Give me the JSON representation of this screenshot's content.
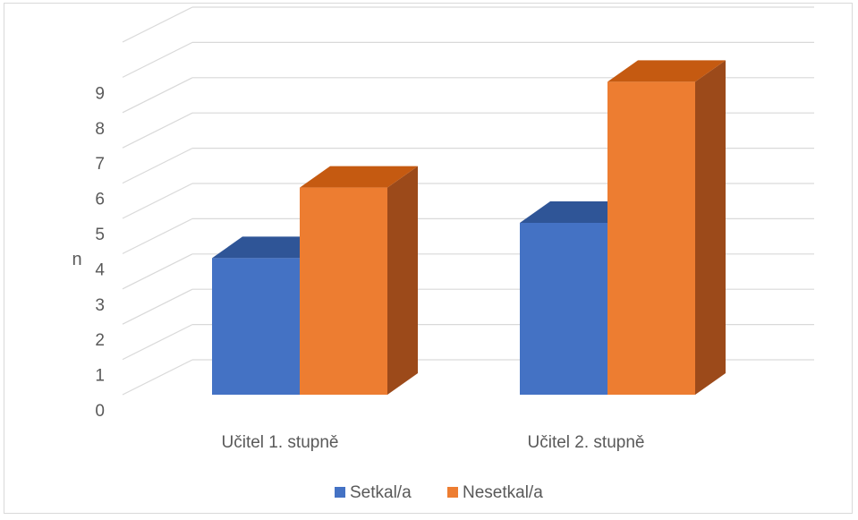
{
  "chart_data": {
    "type": "bar",
    "title": "",
    "xlabel": "",
    "ylabel": "n",
    "ylim": [
      0,
      10
    ],
    "yticks": [
      0,
      1,
      2,
      3,
      4,
      5,
      6,
      7,
      8,
      9
    ],
    "grid": true,
    "legend_position": "bottom",
    "categories": [
      "Učitel 1. stupně",
      "Učitel 2. stupně"
    ],
    "series": [
      {
        "name": "Setkal/a",
        "values": [
          4,
          5
        ],
        "color": "#4472c4",
        "top_color": "#2f5597",
        "side_color": "#2f5597"
      },
      {
        "name": "Nesetkal/a",
        "values": [
          6,
          9
        ],
        "color": "#ed7d31",
        "top_color": "#c55a11",
        "side_color": "#9c4a1a"
      }
    ]
  }
}
